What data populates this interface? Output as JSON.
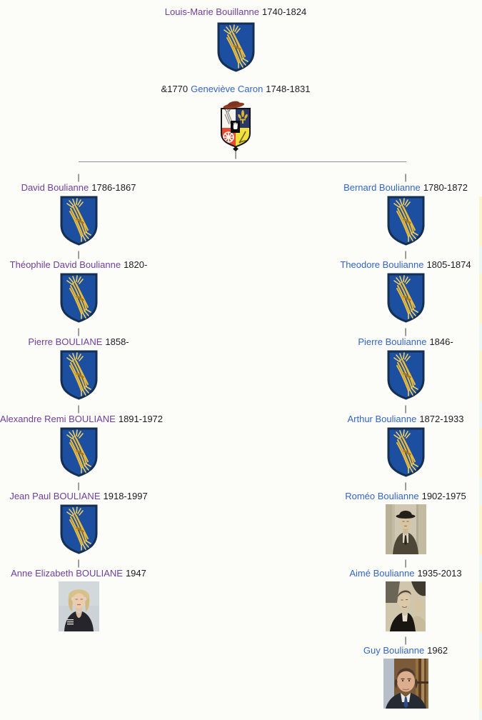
{
  "connector_glyph": "|",
  "colors": {
    "visited_link": "#70409a",
    "link": "#3466c2",
    "text": "#1c1c1c",
    "line": "#8f8f8f",
    "shield_blue": "#1c4f9f",
    "wheat_gold": "#e8ba3e"
  },
  "root": {
    "father": {
      "name": "Louis-Marie Bouillanne",
      "dates": "1740-1824",
      "link_style": "visited",
      "image": "boulianne-shield-icon"
    },
    "marriage_prefix": "&1770",
    "mother": {
      "name": "Geneviève Caron",
      "dates": "1748-1831",
      "link_style": "link",
      "image": "caron-arms-icon"
    }
  },
  "columns": [
    {
      "side": "left",
      "persons": [
        {
          "name": "David Boulianne",
          "dates": "1786-1867",
          "link_style": "visited",
          "image": "boulianne-shield-icon"
        },
        {
          "name": "Théophile David Boulianne",
          "dates": "1820-",
          "link_style": "visited",
          "image": "boulianne-shield-icon"
        },
        {
          "name": "Pierre BOULIANE",
          "dates": "1858-",
          "link_style": "visited",
          "image": "boulianne-shield-icon"
        },
        {
          "name": "Alexandre Remi BOULIANE",
          "dates": "1891-1972",
          "link_style": "visited",
          "image": "boulianne-shield-icon"
        },
        {
          "name": "Jean Paul BOULIANE",
          "dates": "1918-1997",
          "link_style": "visited",
          "image": "boulianne-shield-icon"
        },
        {
          "name": "Anne Elizabeth BOULIANE",
          "dates": "1947",
          "link_style": "visited",
          "image": "portrait-anne-photo"
        }
      ]
    },
    {
      "side": "right",
      "persons": [
        {
          "name": "Bernard Boulianne",
          "dates": "1780-1872",
          "link_style": "link",
          "image": "boulianne-shield-icon"
        },
        {
          "name": "Theodore Boulianne",
          "dates": "1805-1874",
          "link_style": "link",
          "image": "boulianne-shield-icon"
        },
        {
          "name": "Pierre Boulianne",
          "dates": "1846-",
          "link_style": "link",
          "image": "boulianne-shield-icon"
        },
        {
          "name": "Arthur Boulianne",
          "dates": "1872-1933",
          "link_style": "link",
          "image": "boulianne-shield-icon"
        },
        {
          "name": "Roméo Boulianne",
          "dates": "1902-1975",
          "link_style": "link",
          "image": "portrait-romeo-photo"
        },
        {
          "name": "Aimé Boulianne",
          "dates": "1935-2013",
          "link_style": "link",
          "image": "portrait-aime-photo"
        },
        {
          "name": "Guy Boulianne",
          "dates": "1962",
          "link_style": "link",
          "image": "portrait-guy-photo"
        }
      ]
    }
  ]
}
